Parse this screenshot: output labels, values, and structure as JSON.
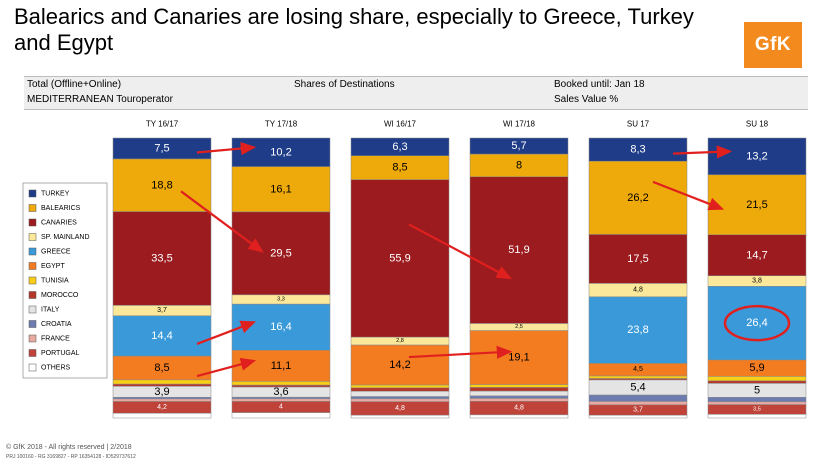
{
  "title": "Balearics and Canaries are losing share, especially to Greece, Turkey and Egypt",
  "logo": "GfK",
  "header": {
    "row1_left": "Total (Offline+Online)",
    "row1_center": "Shares of Destinations",
    "row1_right": "Booked until: Jan 18",
    "row2_left": "MEDITERRANEAN  Touroperator",
    "row2_right": "Sales Value %"
  },
  "footer": {
    "line1": "© GfK 2018 - All rights reserved | 2/2018",
    "line2": "PRJ 100160 - RG 3169827 - RP 16354128 - ID529737612"
  },
  "colors": {
    "TURKEY": "#1f3c88",
    "BALEARICS": "#eeaa0a",
    "CANARIES": "#9b1b1f",
    "SP. MAINLAND": "#fbe89a",
    "GREECE": "#3a9ad9",
    "EGYPT": "#f47c20",
    "TUNISIA": "#f9cf16",
    "MOROCCO": "#b5372a",
    "ITALY": "#e4e4e4",
    "CROATIA": "#6d7cb0",
    "FRANCE": "#e8a9a1",
    "PORTUGAL": "#c0433a",
    "OTHERS": "#ffffff",
    "arrow": "#e0201e",
    "highlight": "#e0201e"
  },
  "chart_data": {
    "type": "bar",
    "stacked": true,
    "normalized_percent": true,
    "categories": [
      "TY 16/17",
      "TY 17/18",
      "WI 16/17",
      "WI 17/18",
      "SU 17",
      "SU 18"
    ],
    "legend": [
      "TURKEY",
      "BALEARICS",
      "CANARIES",
      "SP. MAINLAND",
      "GREECE",
      "EGYPT",
      "TUNISIA",
      "MOROCCO",
      "ITALY",
      "CROATIA",
      "FRANCE",
      "PORTUGAL",
      "OTHERS"
    ],
    "legend_position": "left",
    "series": [
      {
        "name": "TURKEY",
        "values": [
          7.5,
          10.2,
          6.3,
          5.7,
          8.3,
          13.2
        ],
        "labels": [
          "7,5",
          "10,2",
          "6,3",
          "5,7",
          "8,3",
          "13,2"
        ]
      },
      {
        "name": "BALEARICS",
        "values": [
          18.8,
          16.1,
          8.5,
          8,
          26.2,
          21.5
        ],
        "labels": [
          "18,8",
          "16,1",
          "8,5",
          "8",
          "26,2",
          "21,5"
        ]
      },
      {
        "name": "CANARIES",
        "values": [
          33.5,
          29.5,
          55.9,
          51.9,
          17.5,
          14.7
        ],
        "labels": [
          "33,5",
          "29,5",
          "55,9",
          "51,9",
          "17,5",
          "14,7"
        ]
      },
      {
        "name": "SP. MAINLAND",
        "values": [
          3.7,
          3.3,
          2.8,
          2.5,
          4.8,
          3.8
        ],
        "labels": [
          "3,7",
          "3,3",
          "2,8",
          "2,5",
          "4,8",
          "3,8"
        ]
      },
      {
        "name": "GREECE",
        "values": [
          14.4,
          16.4,
          0,
          0,
          23.8,
          26.4
        ],
        "labels": [
          "14,4",
          "16,4",
          "",
          "",
          "23,8",
          "26,4"
        ]
      },
      {
        "name": "EGYPT",
        "values": [
          8.5,
          11.1,
          14.2,
          19.1,
          4.5,
          5.9
        ],
        "labels": [
          "8,5",
          "11,1",
          "14,2",
          "19,1",
          "4,5",
          "5,9"
        ]
      },
      {
        "name": "TUNISIA",
        "values": [
          1.5,
          1.3,
          1.0,
          1.0,
          0.9,
          1.6
        ],
        "labels": [
          "",
          "",
          "",
          "",
          "",
          ""
        ]
      },
      {
        "name": "MOROCCO",
        "values": [
          0.8,
          0.7,
          1.2,
          1.3,
          0.5,
          0.9
        ],
        "labels": [
          "",
          "",
          "",
          "",
          "",
          ""
        ]
      },
      {
        "name": "ITALY",
        "values": [
          3.9,
          3.6,
          1.9,
          1.7,
          5.4,
          5
        ],
        "labels": [
          "3,9",
          "3,6",
          "",
          "",
          "5,4",
          "5"
        ]
      },
      {
        "name": "CROATIA",
        "values": [
          0.6,
          0.6,
          0.8,
          0.9,
          2.3,
          1.6
        ],
        "labels": [
          "",
          "",
          "",
          "",
          "",
          ""
        ]
      },
      {
        "name": "FRANCE",
        "values": [
          0.9,
          0.9,
          1.0,
          1.0,
          1.2,
          1.0
        ],
        "labels": [
          "",
          "",
          "",
          "",
          "",
          ""
        ]
      },
      {
        "name": "PORTUGAL",
        "values": [
          4.2,
          4,
          4.8,
          4.8,
          3.7,
          3.5
        ],
        "labels": [
          "4,2",
          "4",
          "4,8",
          "4,8",
          "3,7",
          "3,5"
        ]
      },
      {
        "name": "OTHERS",
        "values": [
          1.7,
          1.9,
          1.0,
          1.1,
          1.0,
          1.3
        ],
        "labels": [
          "",
          "",
          "",
          "",
          "",
          ""
        ]
      }
    ],
    "annotations": {
      "highlighted_value": "26,4",
      "trend_arrows": [
        {
          "from_category": "TY 16/17",
          "to_category": "TY 17/18",
          "series": "TURKEY"
        },
        {
          "from_category": "TY 16/17",
          "to_category": "TY 17/18",
          "series": "BALEARICS",
          "to_series": "CANARIES"
        },
        {
          "from_category": "TY 16/17",
          "to_category": "TY 17/18",
          "series": "GREECE"
        },
        {
          "from_category": "TY 16/17",
          "to_category": "TY 17/18",
          "series": "EGYPT"
        },
        {
          "from_category": "WI 16/17",
          "to_category": "WI 17/18",
          "series": "CANARIES"
        },
        {
          "from_category": "WI 16/17",
          "to_category": "WI 17/18",
          "series": "EGYPT"
        },
        {
          "from_category": "SU 17",
          "to_category": "SU 18",
          "series": "TURKEY"
        },
        {
          "from_category": "SU 17",
          "to_category": "SU 18",
          "series": "BALEARICS"
        }
      ]
    }
  }
}
